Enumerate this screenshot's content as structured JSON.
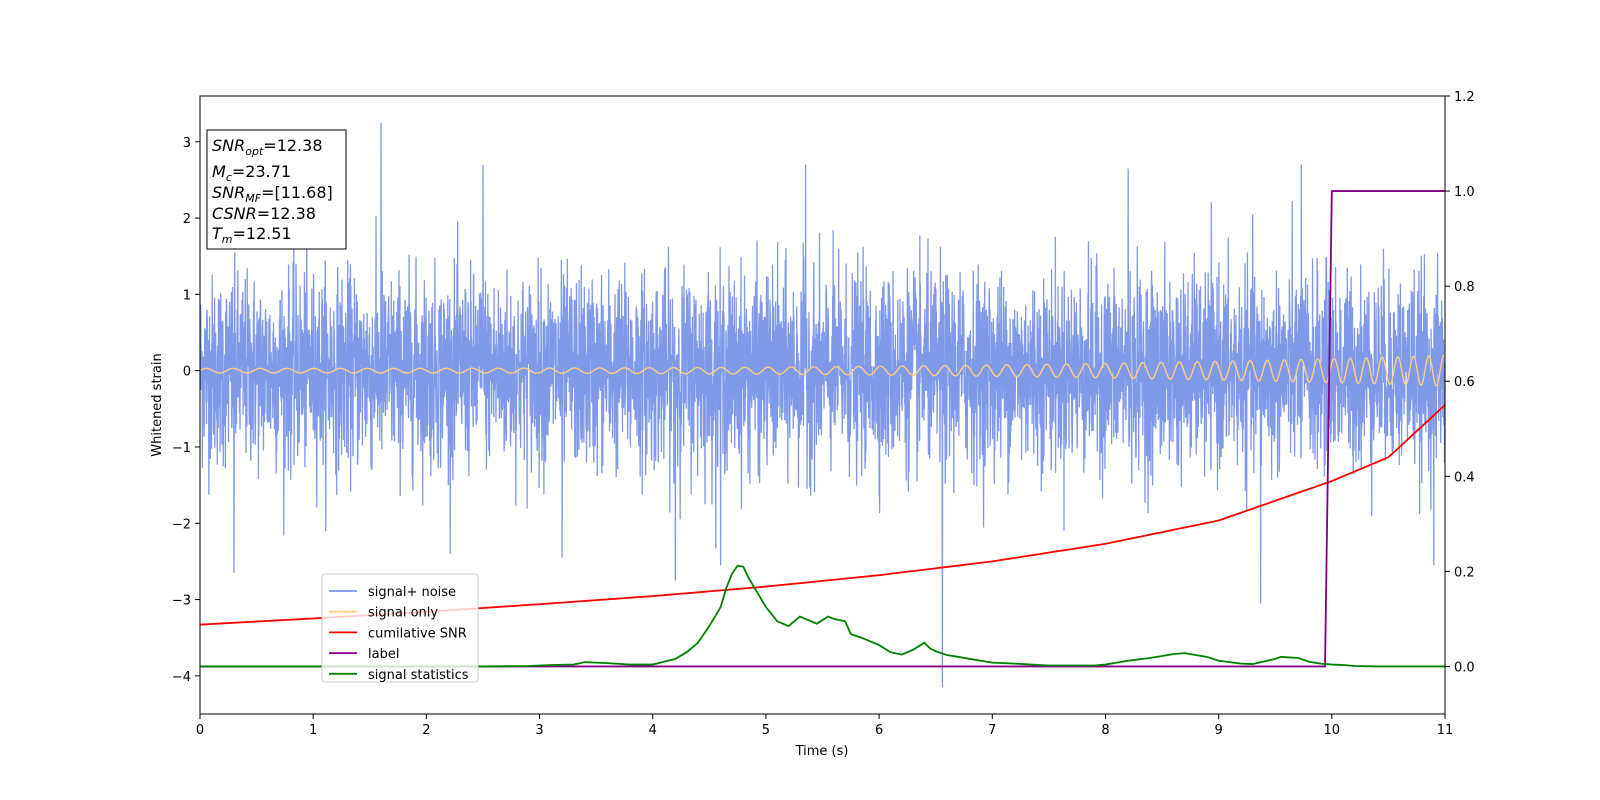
{
  "chart_data": {
    "type": "line",
    "xlabel": "Time (s)",
    "ylabel": "Whitened strain",
    "xlim": [
      0,
      11
    ],
    "ylim_left": [
      -4.5,
      3.6
    ],
    "ylim_right": [
      -0.1,
      1.2
    ],
    "x_ticks": [
      0,
      1,
      2,
      3,
      4,
      5,
      6,
      7,
      8,
      9,
      10,
      11
    ],
    "x_tick_labels": [
      "0",
      "1",
      "2",
      "3",
      "4",
      "5",
      "6",
      "7",
      "8",
      "9",
      "10",
      "11"
    ],
    "y_left_ticks": [
      -4,
      -3,
      -2,
      -1,
      0,
      1,
      2,
      3
    ],
    "y_left_tick_labels": [
      "−4",
      "−3",
      "−2",
      "−1",
      "0",
      "1",
      "2",
      "3"
    ],
    "y_right_ticks": [
      0.0,
      0.2,
      0.4,
      0.6,
      0.8,
      1.0,
      1.2
    ],
    "y_right_tick_labels": [
      "0.0",
      "0.2",
      "0.4",
      "0.6",
      "0.8",
      "1.0",
      "1.2"
    ],
    "grid": false,
    "legend_position": "lower-left",
    "legend": [
      {
        "label": "signal+ noise",
        "color": "#7994e8"
      },
      {
        "label": "signal only",
        "color": "#ffcc88"
      },
      {
        "label": "cumilative SNR",
        "color": "#ff0000"
      },
      {
        "label": "label",
        "color": "#800080"
      },
      {
        "label": "signal statistics",
        "color": "#008000"
      }
    ],
    "annotation": {
      "snr_opt": "=12.38",
      "mc": "=23.71",
      "snr_mf": "=[11.68]",
      "csnr": "=12.38",
      "tm": "=12.51"
    },
    "series": [
      {
        "name": "signal+ noise",
        "axis": "left",
        "color": "#7994e8",
        "description_of_shape": "dense noise band",
        "typical_range": [
          -1.6,
          1.8
        ],
        "peaks": [
          {
            "x": 1.6,
            "y": 3.25
          },
          {
            "x": 0.3,
            "y": -2.65
          },
          {
            "x": 6.56,
            "y": -4.15
          },
          {
            "x": 9.37,
            "y": -3.05
          },
          {
            "x": 4.2,
            "y": -2.75
          },
          {
            "x": 5.35,
            "y": 2.7
          },
          {
            "x": 2.5,
            "y": 2.7
          },
          {
            "x": 8.2,
            "y": 2.65
          },
          {
            "x": 9.73,
            "y": 2.7
          },
          {
            "x": 4.6,
            "y": -2.55
          },
          {
            "x": 3.2,
            "y": -2.45
          },
          {
            "x": 10.9,
            "y": -2.55
          }
        ]
      },
      {
        "name": "signal only",
        "axis": "left",
        "color": "#ffcc88",
        "amplitude_start": 0.03,
        "amplitude_end": 0.2,
        "frequency_start": 4.2,
        "frequency_end": 7.5
      },
      {
        "name": "cumilative SNR",
        "axis": "right",
        "color": "#ff0000",
        "x": [
          0,
          1,
          2,
          3,
          4,
          5,
          6,
          7,
          8,
          9,
          10,
          10.5,
          11
        ],
        "y": [
          0.088,
          0.101,
          0.115,
          0.131,
          0.148,
          0.168,
          0.192,
          0.221,
          0.258,
          0.307,
          0.39,
          0.44,
          0.55
        ]
      },
      {
        "name": "label",
        "axis": "right",
        "color": "#800080",
        "x": [
          0,
          9.94,
          10.0,
          11
        ],
        "y": [
          0,
          0,
          1,
          1
        ]
      },
      {
        "name": "signal statistics",
        "axis": "right",
        "color": "#008000",
        "x": [
          0,
          0.5,
          1,
          1.5,
          2,
          2.5,
          2.9,
          3.1,
          3.3,
          3.4,
          3.5,
          3.6,
          3.8,
          4.0,
          4.1,
          4.2,
          4.3,
          4.4,
          4.5,
          4.6,
          4.65,
          4.7,
          4.75,
          4.8,
          4.85,
          4.9,
          5.0,
          5.1,
          5.15,
          5.2,
          5.3,
          5.35,
          5.45,
          5.55,
          5.6,
          5.7,
          5.75,
          5.85,
          5.9,
          6.0,
          6.1,
          6.2,
          6.3,
          6.4,
          6.45,
          6.5,
          6.6,
          6.7,
          6.9,
          7.0,
          7.2,
          7.5,
          7.9,
          8.0,
          8.1,
          8.2,
          8.3,
          8.4,
          8.5,
          8.6,
          8.7,
          8.9,
          9.0,
          9.2,
          9.3,
          9.5,
          9.55,
          9.7,
          9.8,
          9.9,
          10.0,
          10.1,
          10.2,
          10.4,
          11
        ],
        "y": [
          0.0,
          0.0,
          0.0,
          0.0,
          0.0,
          0.0,
          0.001,
          0.003,
          0.004,
          0.009,
          0.008,
          0.007,
          0.004,
          0.004,
          0.01,
          0.016,
          0.03,
          0.05,
          0.085,
          0.125,
          0.165,
          0.195,
          0.212,
          0.21,
          0.185,
          0.165,
          0.125,
          0.095,
          0.09,
          0.085,
          0.105,
          0.1,
          0.09,
          0.105,
          0.1,
          0.095,
          0.068,
          0.06,
          0.055,
          0.045,
          0.03,
          0.025,
          0.035,
          0.05,
          0.038,
          0.032,
          0.024,
          0.02,
          0.012,
          0.008,
          0.006,
          0.002,
          0.002,
          0.004,
          0.008,
          0.012,
          0.015,
          0.018,
          0.022,
          0.026,
          0.028,
          0.02,
          0.012,
          0.006,
          0.005,
          0.016,
          0.02,
          0.018,
          0.01,
          0.006,
          0.004,
          0.003,
          0.001,
          0.0,
          0.0
        ]
      }
    ]
  }
}
